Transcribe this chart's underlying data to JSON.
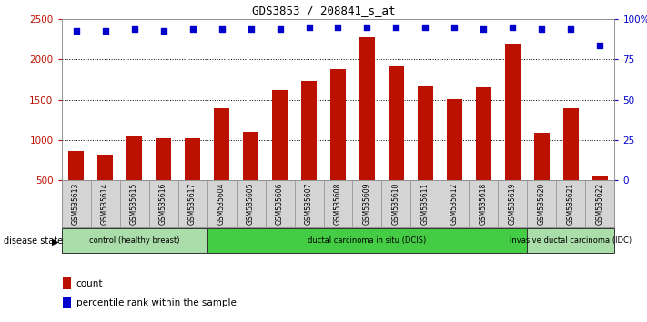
{
  "title": "GDS3853 / 208841_s_at",
  "samples": [
    "GSM535613",
    "GSM535614",
    "GSM535615",
    "GSM535616",
    "GSM535617",
    "GSM535604",
    "GSM535605",
    "GSM535606",
    "GSM535607",
    "GSM535608",
    "GSM535609",
    "GSM535610",
    "GSM535611",
    "GSM535612",
    "GSM535618",
    "GSM535619",
    "GSM535620",
    "GSM535621",
    "GSM535622"
  ],
  "counts": [
    860,
    815,
    1050,
    1025,
    1020,
    1400,
    1100,
    1620,
    1730,
    1880,
    2280,
    1920,
    1680,
    1510,
    1650,
    2200,
    1090,
    1400,
    560
  ],
  "percentiles": [
    93,
    93,
    94,
    93,
    94,
    94,
    94,
    94,
    95,
    95,
    95,
    95,
    95,
    95,
    94,
    95,
    94,
    94,
    84
  ],
  "bar_color": "#bb1100",
  "dot_color": "#0000cc",
  "ylim_left": [
    500,
    2500
  ],
  "ylim_right": [
    0,
    100
  ],
  "yticks_left": [
    500,
    1000,
    1500,
    2000,
    2500
  ],
  "yticks_right": [
    0,
    25,
    50,
    75,
    100
  ],
  "yticklabels_right": [
    "0",
    "25",
    "50",
    "75",
    "100%"
  ],
  "groups": [
    {
      "label": "control (healthy breast)",
      "start": 0,
      "end": 5,
      "color": "#aaddaa"
    },
    {
      "label": "ductal carcinoma in situ (DCIS)",
      "start": 5,
      "end": 16,
      "color": "#44cc44"
    },
    {
      "label": "invasive ductal carcinoma (IDC)",
      "start": 16,
      "end": 19,
      "color": "#aaddaa"
    }
  ],
  "disease_state_label": "disease state",
  "legend_count_label": "count",
  "legend_percentile_label": "percentile rank within the sample",
  "plot_bg_color": "#ffffff",
  "xtick_bg_color": "#d4d4d4",
  "grid_color": "#000000"
}
